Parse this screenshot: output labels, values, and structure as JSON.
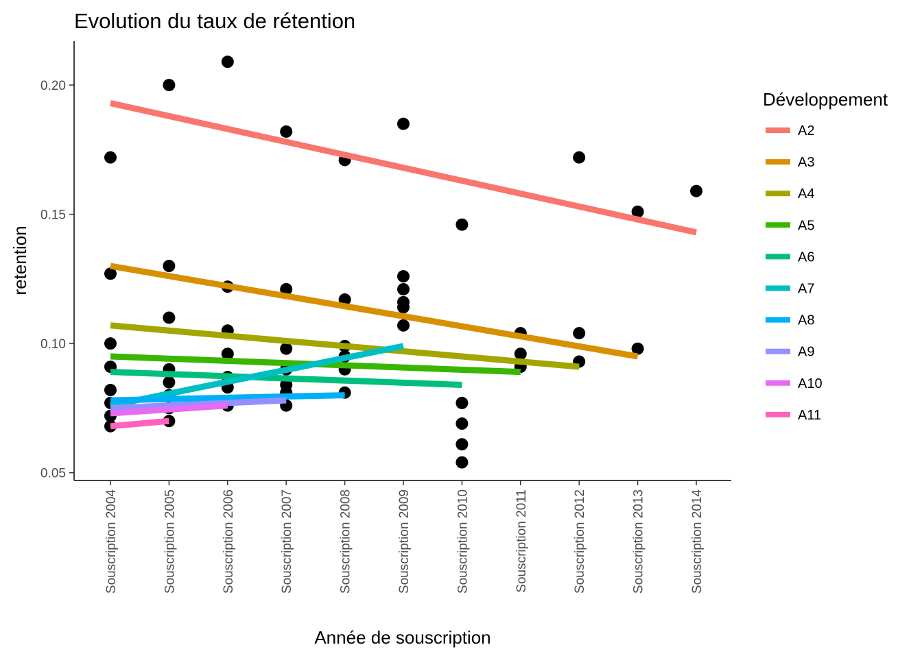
{
  "chart_data": {
    "type": "scatter",
    "title": "Evolution du taux de rétention",
    "xlabel": "Année de souscription",
    "ylabel": "retention",
    "categories": [
      "Souscription 2004",
      "Souscription 2005",
      "Souscription 2006",
      "Souscription 2007",
      "Souscription 2008",
      "Souscription 2009",
      "Souscription 2010",
      "Souscription 2011",
      "Souscription 2012",
      "Souscription 2013",
      "Souscription 2014"
    ],
    "ylim": [
      0.047,
      0.217
    ],
    "yticks": [
      0.05,
      0.1,
      0.15,
      0.2
    ],
    "ytick_labels": [
      "0.05",
      "0.10",
      "0.15",
      "0.20"
    ],
    "grid": false,
    "legend": {
      "title": "Développement",
      "position": "right"
    },
    "points": [
      {
        "x": 0,
        "y": 0.172
      },
      {
        "x": 0,
        "y": 0.127
      },
      {
        "x": 0,
        "y": 0.1
      },
      {
        "x": 0,
        "y": 0.091
      },
      {
        "x": 0,
        "y": 0.082
      },
      {
        "x": 0,
        "y": 0.077
      },
      {
        "x": 0,
        "y": 0.072
      },
      {
        "x": 0,
        "y": 0.068
      },
      {
        "x": 1,
        "y": 0.2
      },
      {
        "x": 1,
        "y": 0.13
      },
      {
        "x": 1,
        "y": 0.11
      },
      {
        "x": 1,
        "y": 0.09
      },
      {
        "x": 1,
        "y": 0.085
      },
      {
        "x": 1,
        "y": 0.08
      },
      {
        "x": 1,
        "y": 0.075
      },
      {
        "x": 1,
        "y": 0.07
      },
      {
        "x": 2,
        "y": 0.209
      },
      {
        "x": 2,
        "y": 0.122
      },
      {
        "x": 2,
        "y": 0.105
      },
      {
        "x": 2,
        "y": 0.096
      },
      {
        "x": 2,
        "y": 0.087
      },
      {
        "x": 2,
        "y": 0.083
      },
      {
        "x": 2,
        "y": 0.076
      },
      {
        "x": 3,
        "y": 0.182
      },
      {
        "x": 3,
        "y": 0.121
      },
      {
        "x": 3,
        "y": 0.098
      },
      {
        "x": 3,
        "y": 0.09
      },
      {
        "x": 3,
        "y": 0.084
      },
      {
        "x": 3,
        "y": 0.081
      },
      {
        "x": 3,
        "y": 0.076
      },
      {
        "x": 4,
        "y": 0.171
      },
      {
        "x": 4,
        "y": 0.117
      },
      {
        "x": 4,
        "y": 0.099
      },
      {
        "x": 4,
        "y": 0.095
      },
      {
        "x": 4,
        "y": 0.09
      },
      {
        "x": 4,
        "y": 0.081
      },
      {
        "x": 5,
        "y": 0.185
      },
      {
        "x": 5,
        "y": 0.126
      },
      {
        "x": 5,
        "y": 0.121
      },
      {
        "x": 5,
        "y": 0.116
      },
      {
        "x": 5,
        "y": 0.114
      },
      {
        "x": 5,
        "y": 0.107
      },
      {
        "x": 6,
        "y": 0.146
      },
      {
        "x": 6,
        "y": 0.077
      },
      {
        "x": 6,
        "y": 0.069
      },
      {
        "x": 6,
        "y": 0.061
      },
      {
        "x": 6,
        "y": 0.054
      },
      {
        "x": 7,
        "y": 0.104
      },
      {
        "x": 7,
        "y": 0.096
      },
      {
        "x": 7,
        "y": 0.091
      },
      {
        "x": 8,
        "y": 0.172
      },
      {
        "x": 8,
        "y": 0.104
      },
      {
        "x": 8,
        "y": 0.093
      },
      {
        "x": 9,
        "y": 0.151
      },
      {
        "x": 9,
        "y": 0.098
      },
      {
        "x": 10,
        "y": 0.159
      }
    ],
    "series": [
      {
        "name": "A2",
        "color": "#F8766D",
        "fit": [
          [
            0,
            0.193
          ],
          [
            10,
            0.143
          ]
        ]
      },
      {
        "name": "A3",
        "color": "#D89000",
        "fit": [
          [
            0,
            0.13
          ],
          [
            9,
            0.095
          ]
        ]
      },
      {
        "name": "A4",
        "color": "#A3A500",
        "fit": [
          [
            0,
            0.107
          ],
          [
            8,
            0.091
          ]
        ]
      },
      {
        "name": "A5",
        "color": "#39B600",
        "fit": [
          [
            0,
            0.095
          ],
          [
            7,
            0.089
          ]
        ]
      },
      {
        "name": "A6",
        "color": "#00BF7D",
        "fit": [
          [
            0,
            0.089
          ],
          [
            6,
            0.084
          ]
        ]
      },
      {
        "name": "A7",
        "color": "#00BFC4",
        "fit": [
          [
            0,
            0.076
          ],
          [
            5,
            0.099
          ]
        ]
      },
      {
        "name": "A8",
        "color": "#00B0F6",
        "fit": [
          [
            0,
            0.078
          ],
          [
            4,
            0.08
          ]
        ]
      },
      {
        "name": "A9",
        "color": "#9590FF",
        "fit": [
          [
            0,
            0.075
          ],
          [
            3,
            0.078
          ]
        ]
      },
      {
        "name": "A10",
        "color": "#E76BF3",
        "fit": [
          [
            0,
            0.073
          ],
          [
            2,
            0.076
          ]
        ]
      },
      {
        "name": "A11",
        "color": "#FF62BC",
        "fit": [
          [
            0,
            0.068
          ],
          [
            1,
            0.07
          ]
        ]
      }
    ]
  }
}
